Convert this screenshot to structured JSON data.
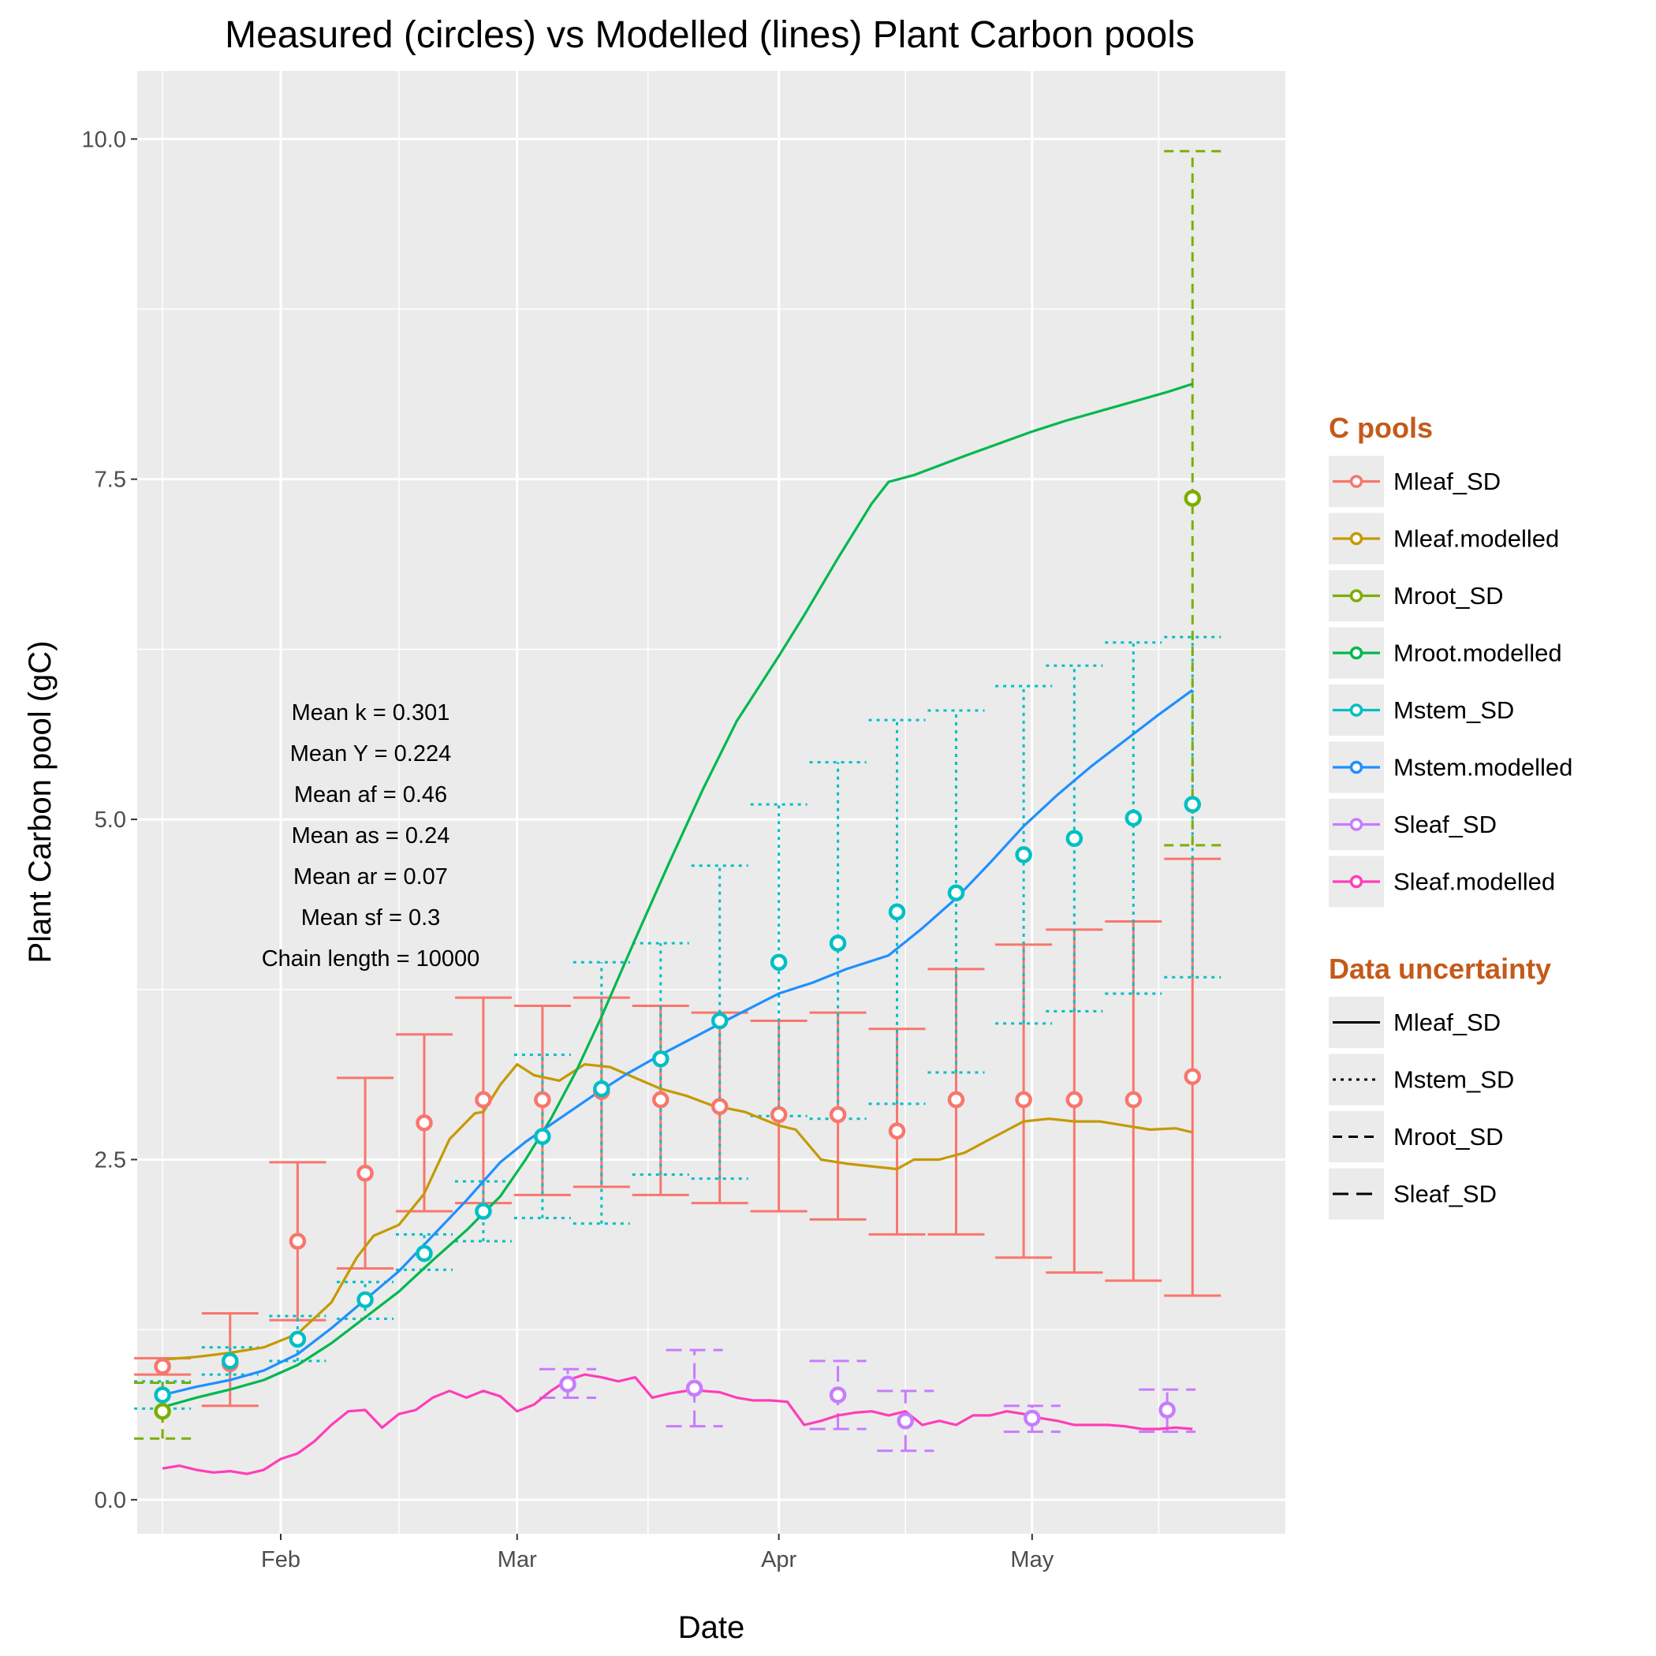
{
  "chart_data": {
    "type": "line",
    "title": "Measured (circles) vs Modelled (lines) Plant Carbon pools",
    "xlabel": "Date",
    "ylabel": "Plant Carbon pool (gC)",
    "xlim": [
      "2013-01-15",
      "2013-05-31"
    ],
    "ylim": [
      -0.25,
      10.5
    ],
    "x_ticks": [
      {
        "date": "2013-02-01",
        "label": "Feb"
      },
      {
        "date": "2013-03-01",
        "label": "Mar"
      },
      {
        "date": "2013-04-01",
        "label": "Apr"
      },
      {
        "date": "2013-05-01",
        "label": "May"
      }
    ],
    "y_ticks": [
      {
        "value": 0,
        "label": "0.0"
      },
      {
        "value": 2.5,
        "label": "2.5"
      },
      {
        "value": 5,
        "label": "5.0"
      },
      {
        "value": 7.5,
        "label": "7.5"
      },
      {
        "value": 10,
        "label": "10.0"
      }
    ],
    "grid": true,
    "legend_position": "right",
    "annotations": [
      "Mean k =  0.301",
      "Mean Y =  0.224",
      "Mean af =  0.46",
      "Mean as =  0.24",
      "Mean ar =  0.07",
      "Mean sf =  0.3",
      "Chain length =  10000"
    ],
    "legend_pools": {
      "title": "C pools",
      "items": [
        {
          "label": "Mleaf_SD",
          "color": "#F8766D"
        },
        {
          "label": "Mleaf.modelled",
          "color": "#C49A00"
        },
        {
          "label": "Mroot_SD",
          "color": "#7CAE00"
        },
        {
          "label": "Mroot.modelled",
          "color": "#00B84E"
        },
        {
          "label": "Mstem_SD",
          "color": "#00BFC4"
        },
        {
          "label": "Mstem.modelled",
          "color": "#1E90FF"
        },
        {
          "label": "Sleaf_SD",
          "color": "#C77CFF"
        },
        {
          "label": "Sleaf.modelled",
          "color": "#FF3DB8"
        }
      ]
    },
    "legend_uncertainty": {
      "title": "Data uncertainty",
      "items": [
        {
          "label": "Mleaf_SD",
          "linetype": "solid"
        },
        {
          "label": "Mstem_SD",
          "linetype": "dotted"
        },
        {
          "label": "Mroot_SD",
          "linetype": "dashed"
        },
        {
          "label": "Sleaf_SD",
          "linetype": "longdash"
        }
      ]
    },
    "measured": [
      {
        "name": "Mleaf_SD",
        "color": "#F8766D",
        "linetype": "solid",
        "points": [
          {
            "x": "2013-01-18",
            "y": 0.98,
            "lo": 0.92,
            "hi": 1.04
          },
          {
            "x": "2013-01-26",
            "y": 1.0,
            "lo": 0.69,
            "hi": 1.37
          },
          {
            "x": "2013-02-03",
            "y": 1.9,
            "lo": 1.32,
            "hi": 2.48
          },
          {
            "x": "2013-02-11",
            "y": 2.4,
            "lo": 1.7,
            "hi": 3.1
          },
          {
            "x": "2013-02-18",
            "y": 2.77,
            "lo": 2.12,
            "hi": 3.42
          },
          {
            "x": "2013-02-25",
            "y": 2.94,
            "lo": 2.18,
            "hi": 3.69
          },
          {
            "x": "2013-03-04",
            "y": 2.94,
            "lo": 2.24,
            "hi": 3.63
          },
          {
            "x": "2013-03-11",
            "y": 3.0,
            "lo": 2.3,
            "hi": 3.69
          },
          {
            "x": "2013-03-18",
            "y": 2.94,
            "lo": 2.24,
            "hi": 3.63
          },
          {
            "x": "2013-03-25",
            "y": 2.89,
            "lo": 2.18,
            "hi": 3.58
          },
          {
            "x": "2013-04-01",
            "y": 2.83,
            "lo": 2.12,
            "hi": 3.52
          },
          {
            "x": "2013-04-08",
            "y": 2.83,
            "lo": 2.06,
            "hi": 3.58
          },
          {
            "x": "2013-04-15",
            "y": 2.71,
            "lo": 1.95,
            "hi": 3.46
          },
          {
            "x": "2013-04-22",
            "y": 2.94,
            "lo": 1.95,
            "hi": 3.9
          },
          {
            "x": "2013-04-30",
            "y": 2.94,
            "lo": 1.78,
            "hi": 4.08
          },
          {
            "x": "2013-05-06",
            "y": 2.94,
            "lo": 1.67,
            "hi": 4.19
          },
          {
            "x": "2013-05-13",
            "y": 2.94,
            "lo": 1.61,
            "hi": 4.25
          },
          {
            "x": "2013-05-20",
            "y": 3.11,
            "lo": 1.5,
            "hi": 4.71
          }
        ]
      },
      {
        "name": "Mstem_SD",
        "color": "#00BFC4",
        "linetype": "dotted",
        "points": [
          {
            "x": "2013-01-18",
            "y": 0.77,
            "lo": 0.67,
            "hi": 0.87
          },
          {
            "x": "2013-01-26",
            "y": 1.02,
            "lo": 0.92,
            "hi": 1.12
          },
          {
            "x": "2013-02-03",
            "y": 1.18,
            "lo": 1.02,
            "hi": 1.35
          },
          {
            "x": "2013-02-11",
            "y": 1.47,
            "lo": 1.33,
            "hi": 1.6
          },
          {
            "x": "2013-02-18",
            "y": 1.81,
            "lo": 1.69,
            "hi": 1.95
          },
          {
            "x": "2013-02-25",
            "y": 2.12,
            "lo": 1.9,
            "hi": 2.34
          },
          {
            "x": "2013-03-04",
            "y": 2.67,
            "lo": 2.07,
            "hi": 3.27
          },
          {
            "x": "2013-03-11",
            "y": 3.02,
            "lo": 2.03,
            "hi": 3.95
          },
          {
            "x": "2013-03-18",
            "y": 3.24,
            "lo": 2.39,
            "hi": 4.09
          },
          {
            "x": "2013-03-25",
            "y": 3.52,
            "lo": 2.36,
            "hi": 4.66
          },
          {
            "x": "2013-04-01",
            "y": 3.95,
            "lo": 2.82,
            "hi": 5.11
          },
          {
            "x": "2013-04-08",
            "y": 4.09,
            "lo": 2.8,
            "hi": 5.42
          },
          {
            "x": "2013-04-15",
            "y": 4.32,
            "lo": 2.91,
            "hi": 5.73
          },
          {
            "x": "2013-04-22",
            "y": 4.46,
            "lo": 3.14,
            "hi": 5.8
          },
          {
            "x": "2013-04-30",
            "y": 4.74,
            "lo": 3.5,
            "hi": 5.98
          },
          {
            "x": "2013-05-06",
            "y": 4.86,
            "lo": 3.59,
            "hi": 6.13
          },
          {
            "x": "2013-05-13",
            "y": 5.01,
            "lo": 3.72,
            "hi": 6.3
          },
          {
            "x": "2013-05-20",
            "y": 5.11,
            "lo": 3.84,
            "hi": 6.34
          }
        ]
      },
      {
        "name": "Mroot_SD",
        "color": "#7CAE00",
        "linetype": "dashed",
        "points": [
          {
            "x": "2013-01-18",
            "y": 0.65,
            "lo": 0.45,
            "hi": 0.86
          },
          {
            "x": "2013-05-20",
            "y": 7.36,
            "lo": 4.81,
            "hi": 9.91
          }
        ]
      },
      {
        "name": "Sleaf_SD",
        "color": "#C77CFF",
        "linetype": "longdash",
        "points": [
          {
            "x": "2013-03-07",
            "y": 0.85,
            "lo": 0.75,
            "hi": 0.96
          },
          {
            "x": "2013-03-22",
            "y": 0.82,
            "lo": 0.54,
            "hi": 1.1
          },
          {
            "x": "2013-04-08",
            "y": 0.77,
            "lo": 0.52,
            "hi": 1.02
          },
          {
            "x": "2013-04-16",
            "y": 0.58,
            "lo": 0.36,
            "hi": 0.8
          },
          {
            "x": "2013-05-01",
            "y": 0.6,
            "lo": 0.5,
            "hi": 0.69
          },
          {
            "x": "2013-05-17",
            "y": 0.66,
            "lo": 0.5,
            "hi": 0.81
          }
        ]
      }
    ],
    "modelled": [
      {
        "name": "Mleaf.modelled",
        "color": "#C49A00",
        "x": [
          "2013-01-18",
          "2013-01-22",
          "2013-01-26",
          "2013-01-30",
          "2013-02-03",
          "2013-02-07",
          "2013-02-10",
          "2013-02-12",
          "2013-02-15",
          "2013-02-18",
          "2013-02-21",
          "2013-02-24",
          "2013-02-25",
          "2013-02-27",
          "2013-03-01",
          "2013-03-03",
          "2013-03-06",
          "2013-03-09",
          "2013-03-12",
          "2013-03-15",
          "2013-03-18",
          "2013-03-21",
          "2013-03-24",
          "2013-03-28",
          "2013-04-01",
          "2013-04-03",
          "2013-04-06",
          "2013-04-09",
          "2013-04-12",
          "2013-04-15",
          "2013-04-17",
          "2013-04-20",
          "2013-04-23",
          "2013-04-26",
          "2013-04-30",
          "2013-05-03",
          "2013-05-06",
          "2013-05-09",
          "2013-05-12",
          "2013-05-15",
          "2013-05-18",
          "2013-05-20"
        ],
        "y": [
          1.03,
          1.05,
          1.08,
          1.12,
          1.22,
          1.45,
          1.78,
          1.94,
          2.02,
          2.25,
          2.65,
          2.84,
          2.85,
          3.05,
          3.2,
          3.12,
          3.08,
          3.2,
          3.18,
          3.1,
          3.02,
          2.97,
          2.9,
          2.85,
          2.75,
          2.72,
          2.5,
          2.47,
          2.45,
          2.43,
          2.5,
          2.5,
          2.55,
          2.65,
          2.78,
          2.8,
          2.78,
          2.78,
          2.75,
          2.72,
          2.73,
          2.7
        ]
      },
      {
        "name": "Mroot.modelled",
        "color": "#00B84E",
        "x": [
          "2013-01-18",
          "2013-01-22",
          "2013-01-26",
          "2013-01-30",
          "2013-02-03",
          "2013-02-07",
          "2013-02-11",
          "2013-02-15",
          "2013-02-19",
          "2013-02-23",
          "2013-02-27",
          "2013-03-02",
          "2013-03-05",
          "2013-03-08",
          "2013-03-11",
          "2013-03-15",
          "2013-03-19",
          "2013-03-23",
          "2013-03-27",
          "2013-04-01",
          "2013-04-04",
          "2013-04-08",
          "2013-04-12",
          "2013-04-14",
          "2013-04-17",
          "2013-04-20",
          "2013-04-23",
          "2013-04-27",
          "2013-05-01",
          "2013-05-05",
          "2013-05-09",
          "2013-05-13",
          "2013-05-17",
          "2013-05-20"
        ],
        "y": [
          0.68,
          0.75,
          0.81,
          0.88,
          0.99,
          1.15,
          1.34,
          1.53,
          1.76,
          1.98,
          2.23,
          2.5,
          2.8,
          3.15,
          3.55,
          4.12,
          4.68,
          5.22,
          5.72,
          6.2,
          6.5,
          6.92,
          7.32,
          7.48,
          7.53,
          7.6,
          7.67,
          7.76,
          7.85,
          7.93,
          8.0,
          8.07,
          8.14,
          8.2
        ]
      },
      {
        "name": "Mstem.modelled",
        "color": "#1E90FF",
        "x": [
          "2013-01-18",
          "2013-01-22",
          "2013-01-26",
          "2013-01-30",
          "2013-02-03",
          "2013-02-07",
          "2013-02-11",
          "2013-02-15",
          "2013-02-19",
          "2013-02-23",
          "2013-02-27",
          "2013-03-02",
          "2013-03-06",
          "2013-03-10",
          "2013-03-14",
          "2013-03-18",
          "2013-03-22",
          "2013-03-26",
          "2013-04-01",
          "2013-04-05",
          "2013-04-09",
          "2013-04-14",
          "2013-04-18",
          "2013-04-22",
          "2013-04-26",
          "2013-04-30",
          "2013-05-04",
          "2013-05-08",
          "2013-05-12",
          "2013-05-16",
          "2013-05-20"
        ],
        "y": [
          0.77,
          0.83,
          0.88,
          0.95,
          1.07,
          1.26,
          1.47,
          1.68,
          1.94,
          2.2,
          2.48,
          2.63,
          2.8,
          2.97,
          3.13,
          3.27,
          3.4,
          3.53,
          3.72,
          3.8,
          3.9,
          4.0,
          4.2,
          4.42,
          4.68,
          4.95,
          5.18,
          5.39,
          5.58,
          5.77,
          5.95
        ]
      },
      {
        "name": "Sleaf.modelled",
        "color": "#FF3DB8",
        "x": [
          "2013-01-18",
          "2013-01-20",
          "2013-01-22",
          "2013-01-24",
          "2013-01-26",
          "2013-01-28",
          "2013-01-30",
          "2013-02-01",
          "2013-02-03",
          "2013-02-05",
          "2013-02-07",
          "2013-02-09",
          "2013-02-11",
          "2013-02-13",
          "2013-02-15",
          "2013-02-17",
          "2013-02-19",
          "2013-02-21",
          "2013-02-23",
          "2013-02-25",
          "2013-02-27",
          "2013-03-01",
          "2013-03-03",
          "2013-03-05",
          "2013-03-07",
          "2013-03-09",
          "2013-03-11",
          "2013-03-13",
          "2013-03-15",
          "2013-03-17",
          "2013-03-19",
          "2013-03-21",
          "2013-03-23",
          "2013-03-25",
          "2013-03-27",
          "2013-03-29",
          "2013-03-31",
          "2013-04-02",
          "2013-04-04",
          "2013-04-06",
          "2013-04-08",
          "2013-04-10",
          "2013-04-12",
          "2013-04-14",
          "2013-04-16",
          "2013-04-18",
          "2013-04-20",
          "2013-04-22",
          "2013-04-24",
          "2013-04-26",
          "2013-04-28",
          "2013-04-30",
          "2013-05-02",
          "2013-05-04",
          "2013-05-06",
          "2013-05-08",
          "2013-05-10",
          "2013-05-12",
          "2013-05-14",
          "2013-05-16",
          "2013-05-18",
          "2013-05-20"
        ],
        "y": [
          0.23,
          0.25,
          0.22,
          0.2,
          0.21,
          0.19,
          0.22,
          0.3,
          0.34,
          0.43,
          0.55,
          0.65,
          0.66,
          0.53,
          0.63,
          0.66,
          0.75,
          0.8,
          0.75,
          0.8,
          0.76,
          0.65,
          0.7,
          0.8,
          0.88,
          0.92,
          0.9,
          0.87,
          0.9,
          0.75,
          0.78,
          0.8,
          0.8,
          0.79,
          0.75,
          0.73,
          0.73,
          0.72,
          0.55,
          0.58,
          0.62,
          0.64,
          0.65,
          0.62,
          0.65,
          0.55,
          0.58,
          0.55,
          0.62,
          0.62,
          0.65,
          0.63,
          0.6,
          0.58,
          0.55,
          0.55,
          0.55,
          0.54,
          0.52,
          0.52,
          0.53,
          0.52
        ]
      }
    ]
  }
}
